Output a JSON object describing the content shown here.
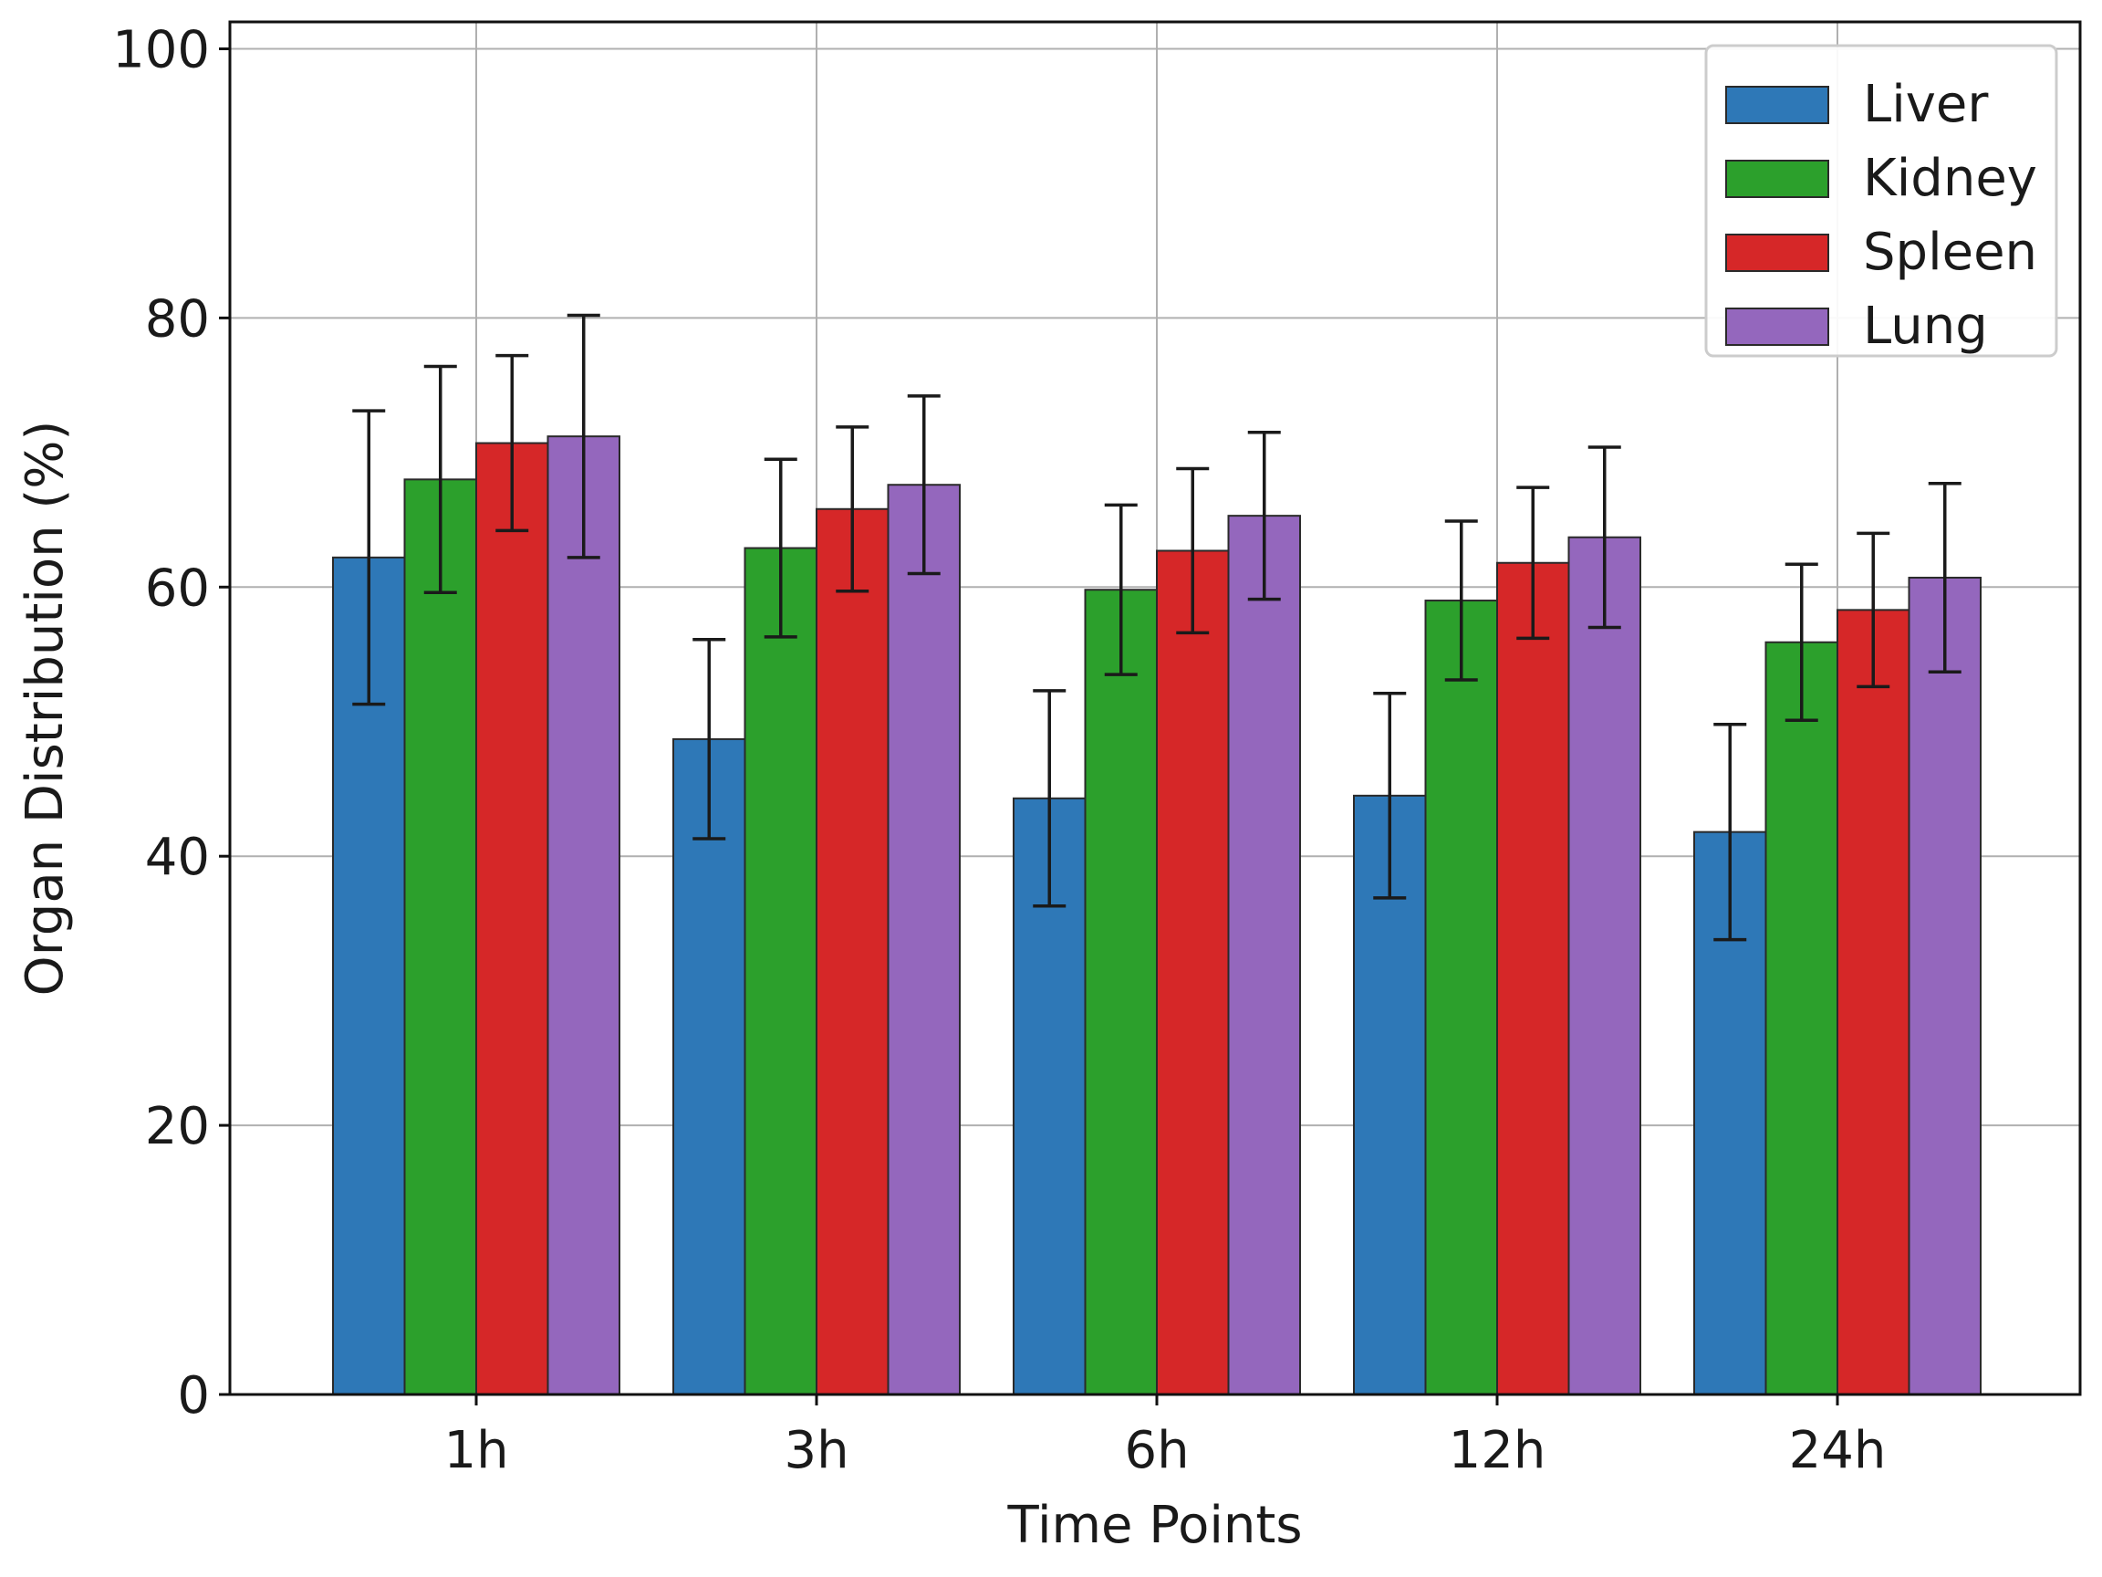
{
  "chart_data": {
    "type": "bar",
    "title": "",
    "xlabel": "Time Points",
    "ylabel": "Organ Distribution (%)",
    "categories": [
      "1h",
      "3h",
      "6h",
      "12h",
      "24h"
    ],
    "ylim": [
      0,
      102
    ],
    "yticks": [
      0,
      20,
      40,
      60,
      80,
      100
    ],
    "grid": true,
    "legend_position": "top-right",
    "series": [
      {
        "name": "Liver",
        "color": "#2e78b7",
        "values": [
          62.2,
          48.7,
          44.3,
          44.5,
          41.8
        ],
        "errors": [
          10.9,
          7.4,
          8.0,
          7.6,
          8.0
        ]
      },
      {
        "name": "Kidney",
        "color": "#2ca02c",
        "values": [
          68.0,
          62.9,
          59.8,
          59.0,
          55.9
        ],
        "errors": [
          8.4,
          6.6,
          6.3,
          5.9,
          5.8
        ]
      },
      {
        "name": "Spleen",
        "color": "#d62728",
        "values": [
          70.7,
          65.8,
          62.7,
          61.8,
          58.3
        ],
        "errors": [
          6.5,
          6.1,
          6.1,
          5.6,
          5.7
        ]
      },
      {
        "name": "Lung",
        "color": "#9467bd",
        "values": [
          71.2,
          67.6,
          65.3,
          63.7,
          60.7
        ],
        "errors": [
          9.0,
          6.6,
          6.2,
          6.7,
          7.0
        ]
      }
    ]
  }
}
